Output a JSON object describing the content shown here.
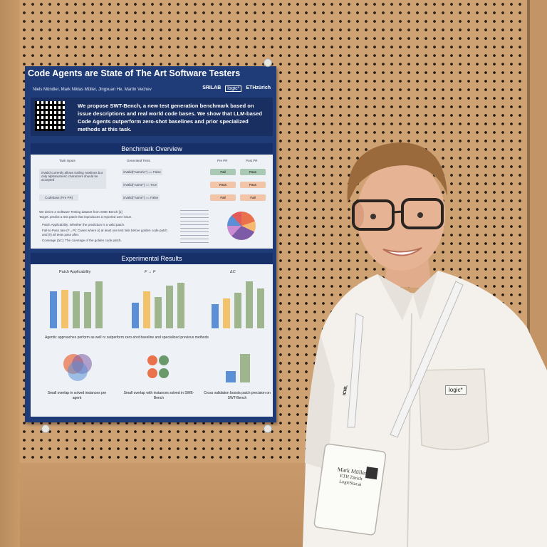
{
  "poster": {
    "title": "Code Agents are State of The Art Software Testers",
    "authors": "Niels Mündler, Mark Niklas Müller, Jingxuan He, Martin Vechev",
    "logos": [
      "SRILAB",
      "logic*",
      "ETHzürich"
    ],
    "intro": "We propose SWT-Bench, a new test generation benchmark based on issue descriptions and real world code bases. We show that LLM-based Code Agents outperform zero-shot baselines and prior specialized methods at this task.",
    "benchmark_overview": {
      "header": "Benchmark Overview",
      "task_inputs_label": "Task Inputs",
      "generated_tests_label": "Generated Tests",
      "pre_pr_label": "Pre PR",
      "post_pr_label": "Post PR",
      "issue_text": "isValid currently allows trailing newlines but only alphanumeric characters should be accepted",
      "codebase_label": "Codebase (Pre PR)",
      "tests": [
        "isValid(\"name\\n\") == False",
        "isValid(\"name\") == True",
        "isValid(\"name\") == False"
      ],
      "results": [
        [
          "Fail",
          "Pass"
        ],
        [
          "Pass",
          "Pass"
        ],
        [
          "Fail",
          "Fail"
        ]
      ],
      "description_lines": [
        "We derive a Software Testing dataset from SWE-Bench [1]",
        "Target: predict a test patch that reproduces a reported user issue.",
        "Patch Applicability: Whether the prediction is a valid patch.",
        "Fail-to-Pass rate (F→P): Cases where (i) at least one test fails before golden code patch and (ii) all tests pass after.",
        "Coverage (ΔC): The coverage of the golden code patch."
      ]
    },
    "experimental_results": {
      "header": "Experimental Results",
      "chart_titles": [
        "Patch Applicability",
        "F → F",
        "ΔC"
      ],
      "highlight": "Agentic approaches perform as well or outperform zero-shot baseline and specialized previous methods",
      "captions": [
        "Small overlap in solved instances per agent",
        "Small overlap with instances solved in SWE-Bench",
        "Cross validation boosts patch precision on SWT-Bench"
      ]
    }
  },
  "badge": {
    "name": "Mark Müller",
    "org": "ETH Zürich",
    "company": "LogicStar.ai"
  },
  "shirt_badge": "logic*",
  "lanyard_text": "ICML"
}
